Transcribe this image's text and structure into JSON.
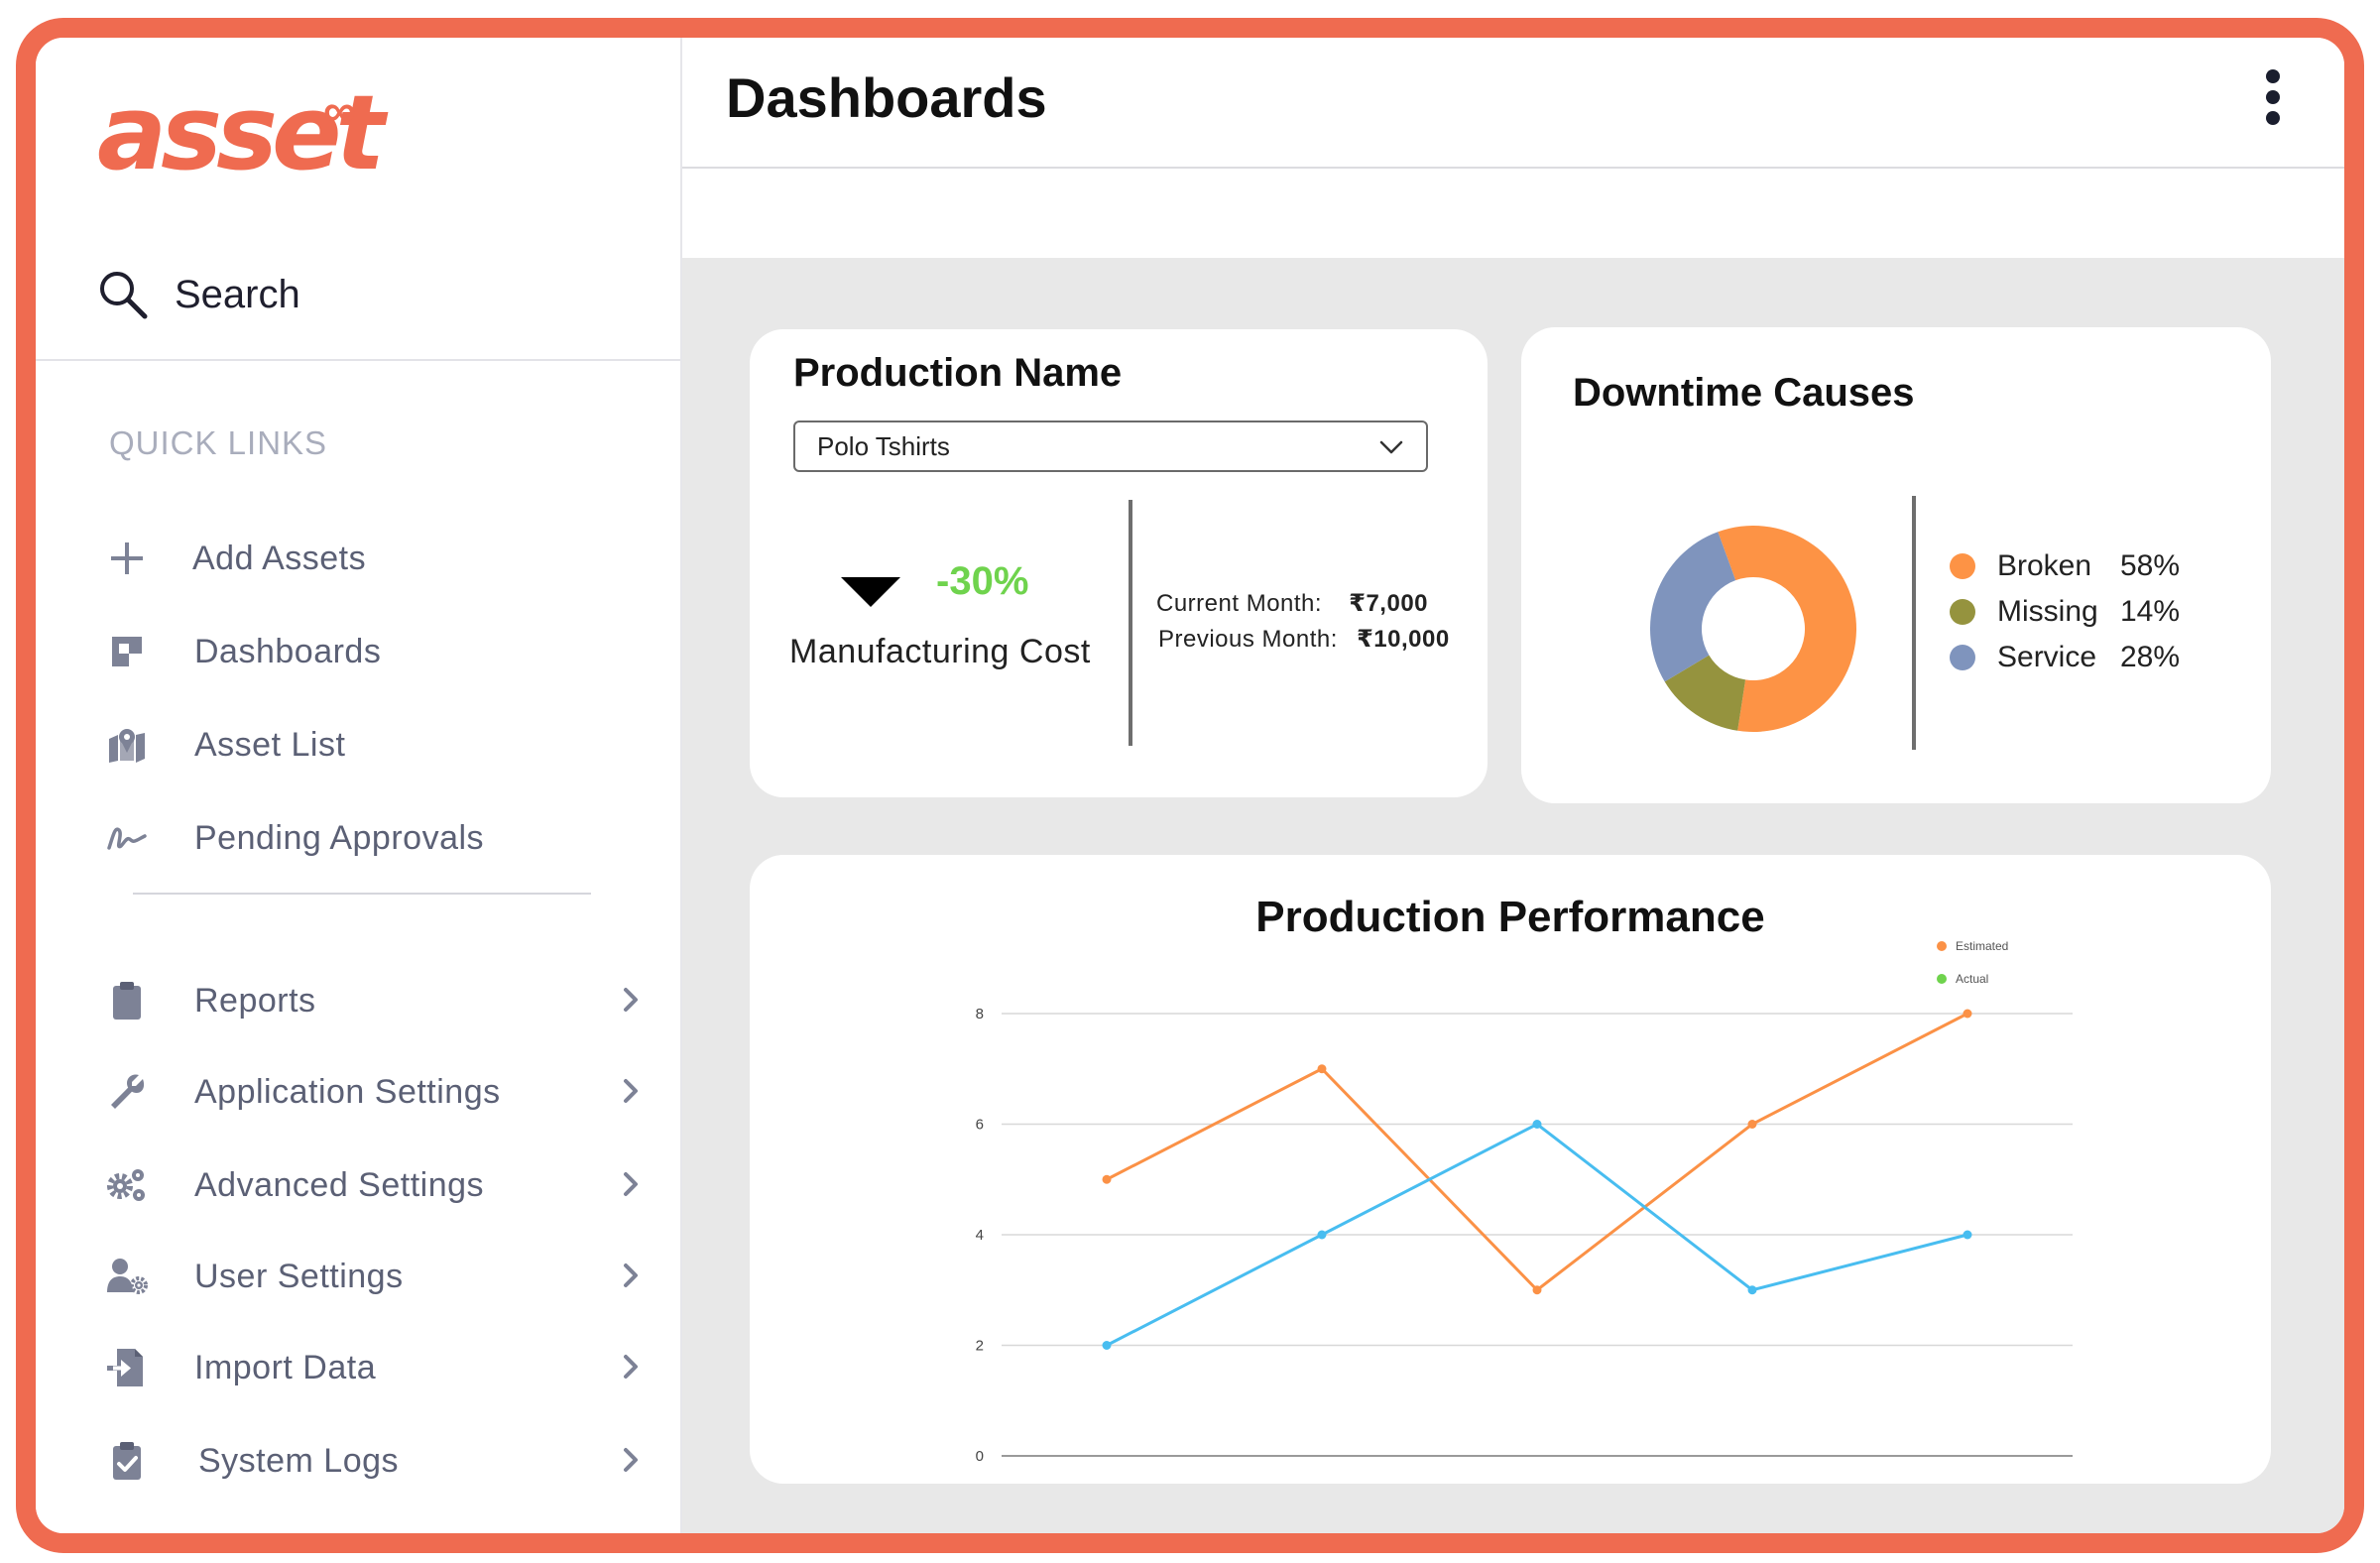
{
  "app": {
    "logo_text": "asset",
    "logo_mark": "∞"
  },
  "search": {
    "label": "Search"
  },
  "sidebar": {
    "quick_links_title": "QUICK LINKS",
    "quick_links": [
      {
        "label": "Add Assets",
        "icon": "plus-icon"
      },
      {
        "label": "Dashboards",
        "icon": "dashboard-icon"
      },
      {
        "label": "Asset List",
        "icon": "map-pin-icon"
      },
      {
        "label": "Pending Approvals",
        "icon": "signature-icon"
      }
    ],
    "items": [
      {
        "label": "Reports",
        "icon": "clipboard-icon"
      },
      {
        "label": "Application Settings",
        "icon": "wrench-icon"
      },
      {
        "label": "Advanced Settings",
        "icon": "gears-icon"
      },
      {
        "label": "User Settings",
        "icon": "user-gear-icon"
      },
      {
        "label": "Import Data",
        "icon": "import-icon"
      },
      {
        "label": "System Logs",
        "icon": "clipboard-check-icon"
      }
    ]
  },
  "header": {
    "title": "Dashboards"
  },
  "production_card": {
    "title": "Production Name",
    "selected": "Polo Tshirts",
    "change": "-30%",
    "metric": "Manufacturing Cost",
    "current_label": "Current Month:",
    "current_value": "₹7,000",
    "previous_label": "Previous Month:",
    "previous_value": "₹10,000"
  },
  "downtime_card": {
    "title": "Downtime Causes",
    "slices": [
      {
        "name": "Broken",
        "value": 58,
        "label": "58%",
        "color": "#fd9345"
      },
      {
        "name": "Missing",
        "value": 14,
        "label": "14%",
        "color": "#95933e"
      },
      {
        "name": "Service",
        "value": 28,
        "label": "28%",
        "color": "#7f94bd"
      }
    ],
    "legend": [
      {
        "name": "Broken",
        "label": "58%",
        "color": "#fd9345"
      },
      {
        "name": "Missing",
        "label": "14%",
        "color": "#95933e"
      },
      {
        "name": "Service",
        "label": "28%",
        "color": "#7f94bd"
      }
    ]
  },
  "chart_data": {
    "type": "line",
    "title": "Production Performance",
    "xlabel": "",
    "ylabel": "",
    "x": [
      1,
      2,
      3,
      4,
      5
    ],
    "ylim": [
      0,
      8
    ],
    "yticks": [
      "0",
      "2",
      "4",
      "6",
      "8"
    ],
    "grid": true,
    "legend_position": "top-right",
    "series": [
      {
        "name": "Estimated",
        "values": [
          5,
          7,
          3,
          6,
          8
        ],
        "color": "#fb9146"
      },
      {
        "name": "Actual",
        "values": [
          2,
          4,
          6,
          3,
          4
        ],
        "color": "#48bdf0",
        "legend_color": "#6fd34d"
      }
    ]
  }
}
